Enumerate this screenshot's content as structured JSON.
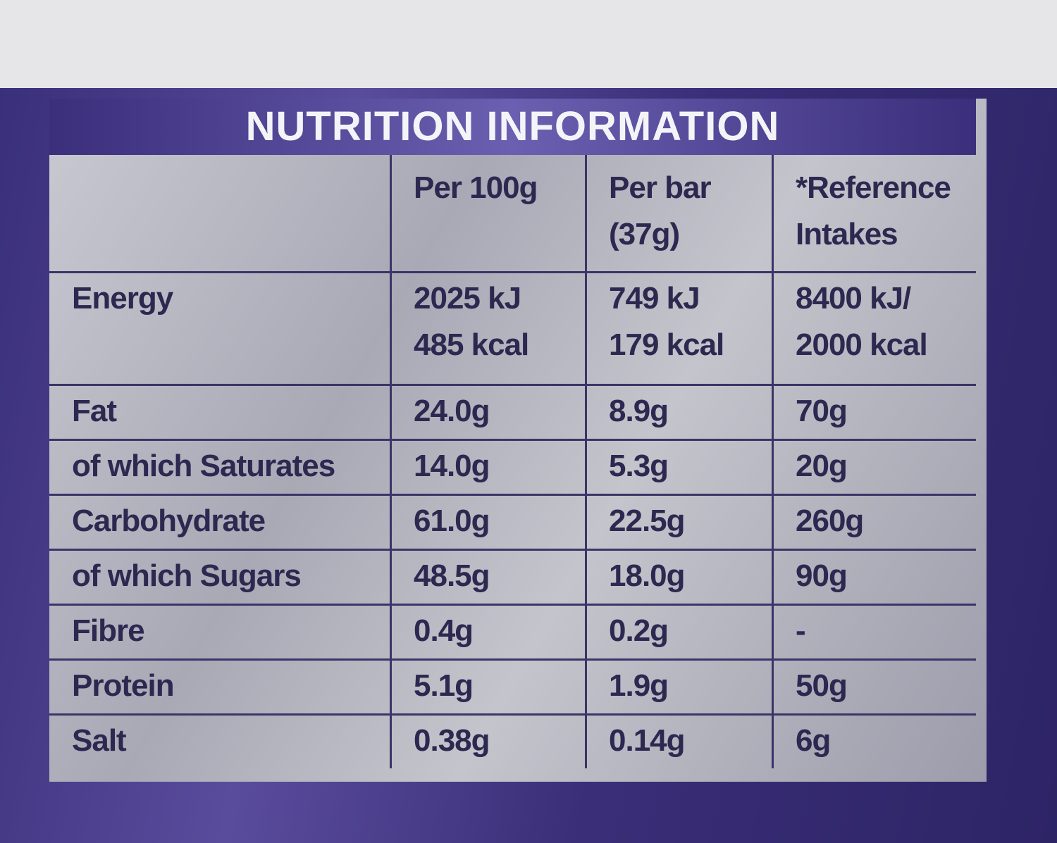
{
  "title": "NUTRITION INFORMATION",
  "table": {
    "columns": [
      [
        "Per 100g"
      ],
      [
        "Per bar",
        "(37g)"
      ],
      [
        "*Reference",
        "Intakes"
      ]
    ],
    "rows": [
      {
        "label": "Energy",
        "cells": [
          [
            "2025 kJ",
            "485 kcal"
          ],
          [
            "749 kJ",
            "179 kcal"
          ],
          [
            "8400 kJ/",
            "2000 kcal"
          ]
        ]
      },
      {
        "label": "Fat",
        "cells": [
          "24.0g",
          "8.9g",
          "70g"
        ]
      },
      {
        "label": "of which Saturates",
        "cells": [
          "14.0g",
          "5.3g",
          "20g"
        ]
      },
      {
        "label": "Carbohydrate",
        "cells": [
          "61.0g",
          "22.5g",
          "260g"
        ]
      },
      {
        "label": "of which Sugars",
        "cells": [
          "48.5g",
          "18.0g",
          "90g"
        ]
      },
      {
        "label": "Fibre",
        "cells": [
          "0.4g",
          "0.2g",
          "-"
        ]
      },
      {
        "label": "Protein",
        "cells": [
          "5.1g",
          "1.9g",
          "50g"
        ]
      },
      {
        "label": "Salt",
        "cells": [
          "0.38g",
          "0.14g",
          "6g"
        ]
      }
    ]
  }
}
